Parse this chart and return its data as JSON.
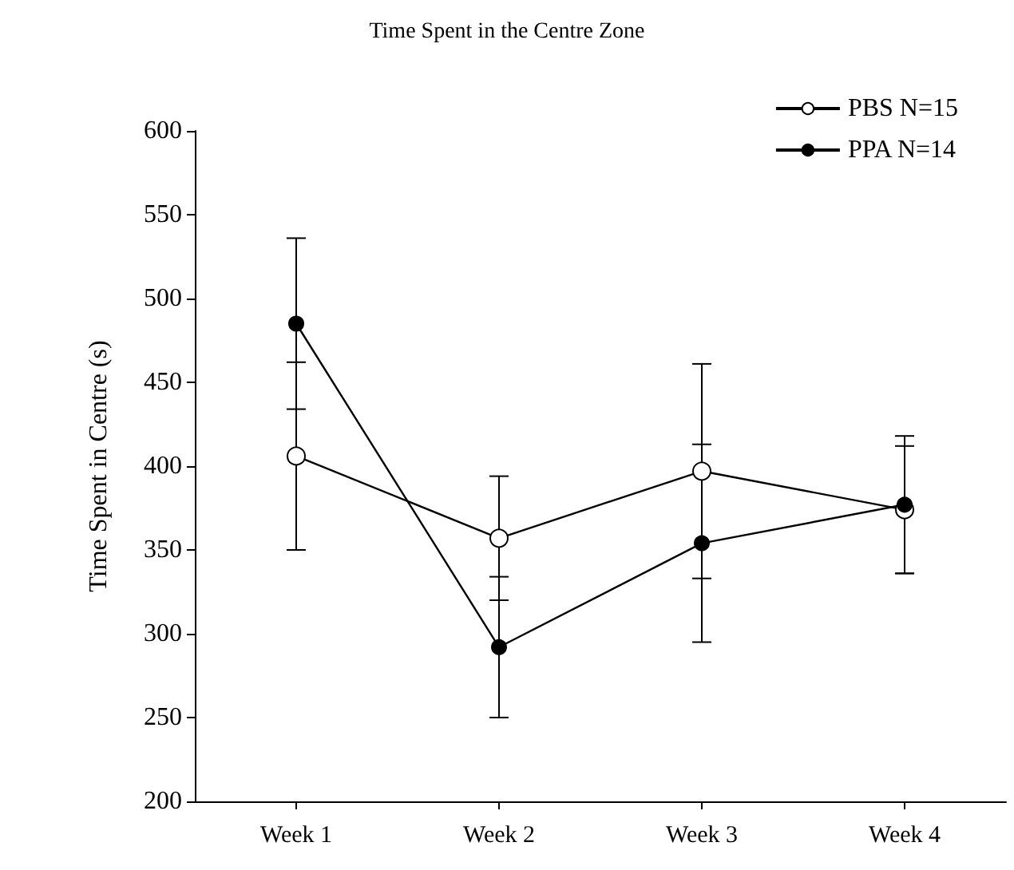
{
  "chart_data": {
    "type": "line",
    "title": "Time Spent in the Centre Zone",
    "ylabel": "Time Spent in Centre (s)",
    "categories": [
      "Week 1",
      "Week 2",
      "Week 3",
      "Week 4"
    ],
    "series": [
      {
        "name": "PBS N=15",
        "color": "#ffffff",
        "values": [
          406,
          357,
          397,
          374
        ],
        "errors": [
          56,
          37,
          64,
          38
        ]
      },
      {
        "name": "PPA N=14",
        "color": "#000000",
        "values": [
          485,
          292,
          354,
          377
        ],
        "errors": [
          51,
          42,
          59,
          41
        ]
      }
    ],
    "ylim": [
      200,
      600
    ],
    "yticks": [
      200,
      250,
      300,
      350,
      400,
      450,
      500,
      550,
      600
    ],
    "grid": false,
    "legend": "top right",
    "marker": "circle",
    "line_style": "solid"
  }
}
